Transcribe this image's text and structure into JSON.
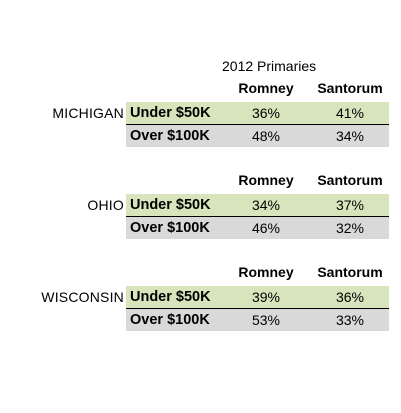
{
  "chart_data": {
    "type": "table",
    "title": "2012 Primaries",
    "columns": [
      "Romney",
      "Santorum"
    ],
    "blocks": [
      {
        "state": "MICHIGAN",
        "rows": [
          {
            "label": "Under $50K",
            "values": [
              "36%",
              "41%"
            ]
          },
          {
            "label": "Over $100K",
            "values": [
              "48%",
              "34%"
            ]
          }
        ]
      },
      {
        "state": "OHIO",
        "rows": [
          {
            "label": "Under $50K",
            "values": [
              "34%",
              "37%"
            ]
          },
          {
            "label": "Over $100K",
            "values": [
              "46%",
              "32%"
            ]
          }
        ]
      },
      {
        "state": "WISCONSIN",
        "rows": [
          {
            "label": "Under $50K",
            "values": [
              "39%",
              "36%"
            ]
          },
          {
            "label": "Over $100K",
            "values": [
              "53%",
              "33%"
            ]
          }
        ]
      }
    ],
    "colors": {
      "under_row": "#d8e4bc",
      "over_row": "#d9d9d9"
    }
  }
}
